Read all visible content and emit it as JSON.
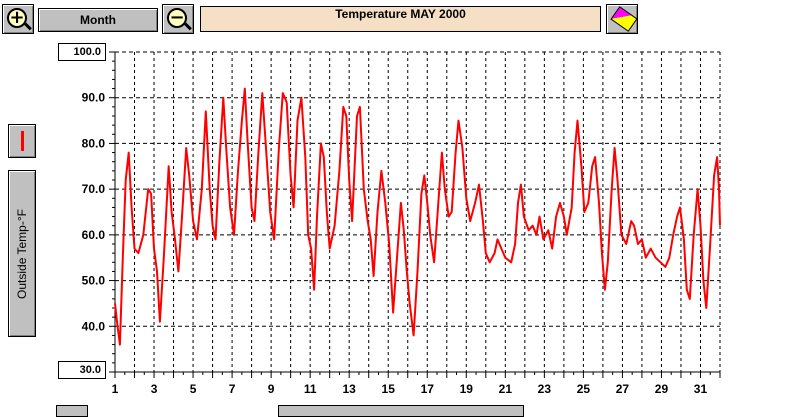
{
  "toolbar": {
    "zoom_in_icon": "plus",
    "zoom_out_icon": "minus",
    "period_label": "Month",
    "title": "Temperature  MAY 2000",
    "pen_icon": "color-pen"
  },
  "legend": {
    "series_label": "Outside Temp-°F",
    "color": "#ff0000"
  },
  "axis_boxes": {
    "ymax": "100.0",
    "ymin": "30.0"
  },
  "chart_data": {
    "type": "line",
    "title": "Temperature  MAY 2000",
    "ylabel": "Outside Temp-°F",
    "xlabel": "",
    "ylim": [
      30,
      100
    ],
    "xlim": [
      1,
      32
    ],
    "yticks": [
      "40.0",
      "50.0",
      "60.0",
      "70.0",
      "80.0",
      "90.0"
    ],
    "xticks": [
      "1",
      "3",
      "5",
      "7",
      "9",
      "11",
      "13",
      "15",
      "17",
      "19",
      "21",
      "23",
      "25",
      "27",
      "29",
      "31"
    ],
    "grid": true,
    "series": [
      {
        "color": "#ff0000",
        "points": [
          [
            1.0,
            45
          ],
          [
            1.1,
            41
          ],
          [
            1.25,
            36
          ],
          [
            1.4,
            55
          ],
          [
            1.55,
            72
          ],
          [
            1.7,
            78
          ],
          [
            1.85,
            66
          ],
          [
            2.0,
            57
          ],
          [
            2.2,
            56
          ],
          [
            2.45,
            60
          ],
          [
            2.7,
            70
          ],
          [
            2.85,
            69
          ],
          [
            3.0,
            57
          ],
          [
            3.15,
            52
          ],
          [
            3.3,
            41
          ],
          [
            3.5,
            55
          ],
          [
            3.75,
            75
          ],
          [
            3.9,
            65
          ],
          [
            4.05,
            60
          ],
          [
            4.25,
            52
          ],
          [
            4.45,
            65
          ],
          [
            4.65,
            79
          ],
          [
            4.8,
            73
          ],
          [
            5.0,
            63
          ],
          [
            5.2,
            59
          ],
          [
            5.45,
            70
          ],
          [
            5.65,
            87
          ],
          [
            5.85,
            70
          ],
          [
            6.0,
            62
          ],
          [
            6.15,
            59
          ],
          [
            6.35,
            76
          ],
          [
            6.55,
            90
          ],
          [
            6.7,
            79
          ],
          [
            6.9,
            66
          ],
          [
            7.1,
            60
          ],
          [
            7.3,
            74
          ],
          [
            7.5,
            85
          ],
          [
            7.65,
            92
          ],
          [
            7.8,
            80
          ],
          [
            8.0,
            66
          ],
          [
            8.15,
            63
          ],
          [
            8.35,
            78
          ],
          [
            8.55,
            91
          ],
          [
            8.75,
            78
          ],
          [
            8.95,
            65
          ],
          [
            9.15,
            59
          ],
          [
            9.4,
            79
          ],
          [
            9.6,
            91
          ],
          [
            9.8,
            89
          ],
          [
            10.0,
            73
          ],
          [
            10.15,
            66
          ],
          [
            10.35,
            85
          ],
          [
            10.55,
            90
          ],
          [
            10.75,
            77
          ],
          [
            10.9,
            60
          ],
          [
            11.05,
            57
          ],
          [
            11.2,
            48
          ],
          [
            11.35,
            64
          ],
          [
            11.55,
            80
          ],
          [
            11.7,
            77
          ],
          [
            11.85,
            65
          ],
          [
            12.0,
            57
          ],
          [
            12.25,
            62
          ],
          [
            12.5,
            74
          ],
          [
            12.7,
            88
          ],
          [
            12.85,
            86
          ],
          [
            13.0,
            72
          ],
          [
            13.15,
            63
          ],
          [
            13.4,
            86
          ],
          [
            13.55,
            88
          ],
          [
            13.75,
            70
          ],
          [
            13.95,
            63
          ],
          [
            14.1,
            59
          ],
          [
            14.25,
            51
          ],
          [
            14.45,
            65
          ],
          [
            14.65,
            74
          ],
          [
            14.85,
            67
          ],
          [
            15.05,
            58
          ],
          [
            15.25,
            43
          ],
          [
            15.45,
            55
          ],
          [
            15.65,
            67
          ],
          [
            15.8,
            61
          ],
          [
            15.95,
            52
          ],
          [
            16.1,
            45
          ],
          [
            16.3,
            38
          ],
          [
            16.5,
            52
          ],
          [
            16.7,
            69
          ],
          [
            16.85,
            73
          ],
          [
            17.0,
            67
          ],
          [
            17.15,
            60
          ],
          [
            17.35,
            54
          ],
          [
            17.55,
            66
          ],
          [
            17.75,
            78
          ],
          [
            17.9,
            70
          ],
          [
            18.1,
            64
          ],
          [
            18.25,
            65
          ],
          [
            18.45,
            78
          ],
          [
            18.6,
            85
          ],
          [
            18.8,
            79
          ],
          [
            19.0,
            68
          ],
          [
            19.2,
            63
          ],
          [
            19.45,
            67
          ],
          [
            19.65,
            71
          ],
          [
            19.85,
            63
          ],
          [
            20.0,
            56
          ],
          [
            20.2,
            54
          ],
          [
            20.45,
            56
          ],
          [
            20.6,
            59
          ],
          [
            20.8,
            57
          ],
          [
            21.0,
            55
          ],
          [
            21.3,
            54
          ],
          [
            21.5,
            58
          ],
          [
            21.65,
            67
          ],
          [
            21.8,
            71
          ],
          [
            21.95,
            64
          ],
          [
            22.2,
            61
          ],
          [
            22.4,
            62
          ],
          [
            22.6,
            60
          ],
          [
            22.75,
            64
          ],
          [
            22.95,
            59
          ],
          [
            23.2,
            61
          ],
          [
            23.4,
            57
          ],
          [
            23.6,
            64
          ],
          [
            23.8,
            67
          ],
          [
            24.0,
            64
          ],
          [
            24.15,
            60
          ],
          [
            24.4,
            66
          ],
          [
            24.55,
            78
          ],
          [
            24.7,
            85
          ],
          [
            24.9,
            75
          ],
          [
            25.05,
            65
          ],
          [
            25.25,
            67
          ],
          [
            25.45,
            75
          ],
          [
            25.6,
            77
          ],
          [
            25.8,
            67
          ],
          [
            25.95,
            56
          ],
          [
            26.1,
            48
          ],
          [
            26.25,
            54
          ],
          [
            26.45,
            70
          ],
          [
            26.6,
            79
          ],
          [
            26.75,
            72
          ],
          [
            26.95,
            60
          ],
          [
            27.2,
            58
          ],
          [
            27.45,
            63
          ],
          [
            27.6,
            62
          ],
          [
            27.8,
            58
          ],
          [
            28.0,
            59
          ],
          [
            28.2,
            55
          ],
          [
            28.45,
            57
          ],
          [
            28.7,
            55
          ],
          [
            28.95,
            54
          ],
          [
            29.2,
            53
          ],
          [
            29.4,
            55
          ],
          [
            29.6,
            60
          ],
          [
            29.8,
            64
          ],
          [
            29.95,
            66
          ],
          [
            30.15,
            59
          ],
          [
            30.3,
            48
          ],
          [
            30.45,
            46
          ],
          [
            30.65,
            60
          ],
          [
            30.85,
            70
          ],
          [
            31.0,
            62
          ],
          [
            31.15,
            50
          ],
          [
            31.3,
            44
          ],
          [
            31.5,
            58
          ],
          [
            31.7,
            73
          ],
          [
            31.85,
            77
          ],
          [
            31.95,
            70
          ],
          [
            32.0,
            62
          ]
        ]
      }
    ]
  }
}
